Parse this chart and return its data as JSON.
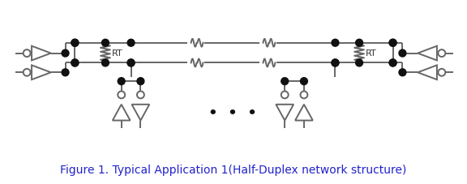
{
  "title": "Figure 1. Typical Application 1(Half-Duplex network structure)",
  "title_fontsize": 10,
  "title_color": "#2222cc",
  "bg_color": "#ffffff",
  "line_color": "#666666",
  "dot_color": "#111111",
  "figsize": [
    5.76,
    2.28
  ],
  "dpi": 100
}
